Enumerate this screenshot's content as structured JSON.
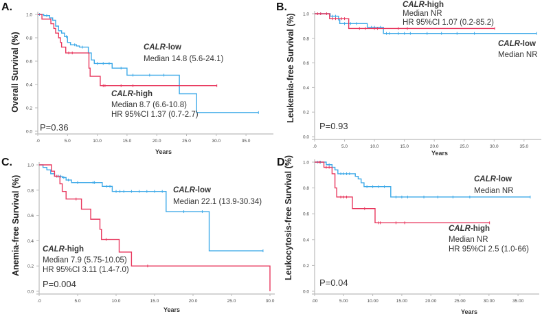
{
  "colors": {
    "low": "#3da9e8",
    "high": "#e8385e",
    "axis": "#bbbbbb"
  },
  "chart_data": [
    {
      "type": "line",
      "panel": "A.",
      "ylabel": "Overall Survival (%)",
      "xlabel": "Years",
      "xticks": [
        ".0",
        "5.0",
        "10.0",
        "15.0",
        "20.0",
        "25.0",
        "30.0",
        "35.0"
      ],
      "yticks": [
        "0.0",
        "0.2",
        "0.4",
        "0.6",
        "0.8",
        "1.0"
      ],
      "ylim": [
        0,
        1
      ],
      "pvalue": "P=0.36",
      "series": [
        {
          "name": "CALR-low",
          "group": "low",
          "steps": [
            [
              0,
              1
            ],
            [
              1,
              0.99
            ],
            [
              2,
              0.97
            ],
            [
              2.5,
              0.95
            ],
            [
              3,
              0.9
            ],
            [
              3.5,
              0.86
            ],
            [
              4,
              0.84
            ],
            [
              4.5,
              0.81
            ],
            [
              5,
              0.76
            ],
            [
              5.5,
              0.74
            ],
            [
              6.5,
              0.73
            ],
            [
              7,
              0.72
            ],
            [
              8.5,
              0.67
            ],
            [
              9,
              0.61
            ],
            [
              9.5,
              0.58
            ],
            [
              12.5,
              0.54
            ],
            [
              15,
              0.48
            ],
            [
              23.8,
              0.32
            ],
            [
              26.7,
              0.16
            ]
          ],
          "end": 37.1,
          "censors": [
            0.3,
            1.5,
            4.8,
            6.2,
            7.5,
            10,
            11,
            12,
            14,
            16,
            18.8,
            21.2,
            37.1
          ]
        },
        {
          "name": "CALR-high",
          "group": "high",
          "steps": [
            [
              0,
              1
            ],
            [
              0.7,
              0.96
            ],
            [
              2.2,
              0.92
            ],
            [
              2.7,
              0.88
            ],
            [
              3,
              0.84
            ],
            [
              3.5,
              0.8
            ],
            [
              3.8,
              0.76
            ],
            [
              4,
              0.72
            ],
            [
              4.7,
              0.67
            ],
            [
              8.6,
              0.54
            ],
            [
              8.8,
              0.47
            ],
            [
              10.5,
              0.39
            ]
          ],
          "end": 30.1,
          "censors": [
            5.2,
            5.8,
            11,
            11.3,
            14,
            16,
            30.1
          ]
        }
      ],
      "annotations": {
        "low": {
          "group": "CALR",
          "suffix": "-low",
          "median": "Median 14.8 (5.6-24.1)"
        },
        "high": {
          "group": "CALR",
          "suffix": "-high",
          "median": "Median 8.7 (6.6-10.8)",
          "hr": "HR 95%CI  1.37 (0.7-2.7)"
        }
      }
    },
    {
      "type": "line",
      "panel": "B.",
      "ylabel": "Leukemia-free Survival (%)",
      "xlabel": "Years",
      "xticks": [
        ".0",
        "5.0",
        "10.0",
        "15.0",
        "20.0",
        "25.0",
        "30.0",
        "35.0"
      ],
      "yticks": [
        "0.0",
        "0.2",
        "0.4",
        "0.6",
        "0.8",
        "1.0"
      ],
      "ylim": [
        0,
        1
      ],
      "pvalue": "P=0.93",
      "series": [
        {
          "name": "CALR-low",
          "group": "low",
          "steps": [
            [
              0,
              1
            ],
            [
              2.6,
              0.98
            ],
            [
              4,
              0.95
            ],
            [
              4.2,
              0.92
            ],
            [
              8.8,
              0.89
            ],
            [
              11.5,
              0.84
            ]
          ],
          "end": 37.1,
          "censors": [
            1,
            3,
            3.5,
            5,
            6,
            7,
            9.5,
            10,
            11,
            12,
            12.5,
            14,
            15,
            16,
            18.8,
            21.2,
            23.8,
            26.7,
            37.1
          ]
        },
        {
          "name": "CALR-high",
          "group": "high",
          "steps": [
            [
              0,
              1
            ],
            [
              2.5,
              0.96
            ],
            [
              5.7,
              0.88
            ]
          ],
          "end": 30.1,
          "censors": [
            0.5,
            1,
            2,
            3,
            3.5,
            4.5,
            5,
            7.5,
            8.5,
            10,
            10.5,
            14,
            15.5,
            30.1
          ]
        }
      ],
      "annotations": {
        "low": {
          "group": "CALR",
          "suffix": "-low",
          "median": "Median NR"
        },
        "high": {
          "group": "CALR",
          "suffix": "-high",
          "median": "Median NR",
          "hr": "HR 95%CI  1.07 (0.2-85.2)"
        }
      }
    },
    {
      "type": "line",
      "panel": "C.",
      "ylabel": "Anemia-free Survival (%)",
      "xlabel": "Years",
      "xticks": [
        ".0",
        "5.0",
        "10.0",
        "15.0",
        "20.0",
        "25.0",
        "30.0"
      ],
      "yticks": [
        "0.0",
        "0.2",
        "0.4",
        "0.6",
        "0.8",
        "1.0"
      ],
      "ylim": [
        0,
        1
      ],
      "pvalue": "P=0.004",
      "series": [
        {
          "name": "CALR-low",
          "group": "low",
          "steps": [
            [
              0,
              1
            ],
            [
              0.5,
              0.98
            ],
            [
              1,
              0.96
            ],
            [
              1.5,
              0.93
            ],
            [
              2,
              0.91
            ],
            [
              3,
              0.9
            ],
            [
              3.5,
              0.88
            ],
            [
              4.2,
              0.86
            ],
            [
              8.2,
              0.83
            ],
            [
              9.5,
              0.79
            ],
            [
              16.5,
              0.63
            ],
            [
              22.1,
              0.32
            ]
          ],
          "end": 29.1,
          "censors": [
            2.5,
            2.8,
            3.2,
            3.8,
            5,
            7,
            7.2,
            8.8,
            9.2,
            10,
            10.5,
            11,
            12,
            13,
            14,
            15,
            16,
            18.8,
            21.2,
            29.1
          ]
        },
        {
          "name": "CALR-high",
          "group": "high",
          "steps": [
            [
              0,
              1
            ],
            [
              1.6,
              0.95
            ],
            [
              2,
              0.91
            ],
            [
              2.7,
              0.85
            ],
            [
              3,
              0.79
            ],
            [
              3.5,
              0.73
            ],
            [
              5.5,
              0.65
            ],
            [
              6.7,
              0.57
            ],
            [
              7.9,
              0.49
            ],
            [
              8.1,
              0.41
            ],
            [
              10.4,
              0.31
            ],
            [
              12,
              0.2
            ],
            [
              30,
              0
            ]
          ],
          "end": 30,
          "censors": [
            2.3,
            4.8,
            8.7,
            14.1
          ]
        }
      ],
      "annotations": {
        "low": {
          "group": "CALR",
          "suffix": "-low",
          "median": "Median 22.1 (13.9-30.34)"
        },
        "high": {
          "group": "CALR",
          "suffix": "-high",
          "median": "Median 7.9 (5.75-10.05)",
          "hr": "HR 95%CI  3.11 (1.4-7.0)"
        }
      }
    },
    {
      "type": "line",
      "panel": "D.",
      "ylabel": "Leukocytosis-free Survival (%)",
      "xlabel": "Years",
      "xticks": [
        ".00",
        "5.00",
        "10.00",
        "15.00",
        "20.00",
        "25.00",
        "30.00",
        "35.00"
      ],
      "yticks": [
        "0.0",
        "0.2",
        "0.4",
        "0.6",
        "0.8",
        "1.0"
      ],
      "ylim": [
        0,
        1
      ],
      "pvalue": "P=0.04",
      "series": [
        {
          "name": "CALR-low",
          "group": "low",
          "steps": [
            [
              0,
              1
            ],
            [
              2,
              0.98
            ],
            [
              3,
              0.96
            ],
            [
              3.5,
              0.94
            ],
            [
              4,
              0.91
            ],
            [
              7,
              0.89
            ],
            [
              7.5,
              0.87
            ],
            [
              8,
              0.84
            ],
            [
              8.5,
              0.81
            ],
            [
              13.1,
              0.73
            ]
          ],
          "end": 37.1,
          "censors": [
            0.5,
            1,
            2.5,
            4.5,
            5,
            5.5,
            6,
            9,
            10,
            11,
            12,
            14,
            15,
            16,
            18.8,
            21.2,
            23.8,
            26.7,
            37.1
          ]
        },
        {
          "name": "CALR-high",
          "group": "high",
          "steps": [
            [
              0,
              1
            ],
            [
              1.6,
              0.96
            ],
            [
              3,
              0.91
            ],
            [
              3.5,
              0.8
            ],
            [
              3.8,
              0.73
            ],
            [
              6.5,
              0.64
            ],
            [
              10.4,
              0.53
            ]
          ],
          "end": 30.1,
          "censors": [
            0.8,
            2,
            2.5,
            4.5,
            5,
            5.5,
            8.6,
            11,
            11.3,
            14,
            15.5,
            30.1
          ]
        }
      ],
      "annotations": {
        "low": {
          "group": "CALR",
          "suffix": "-low",
          "median": "Median NR"
        },
        "high": {
          "group": "CALR",
          "suffix": "-high",
          "median": "Median NR",
          "hr": "HR 95%CI  2.5 (1.0-66)"
        }
      }
    }
  ]
}
